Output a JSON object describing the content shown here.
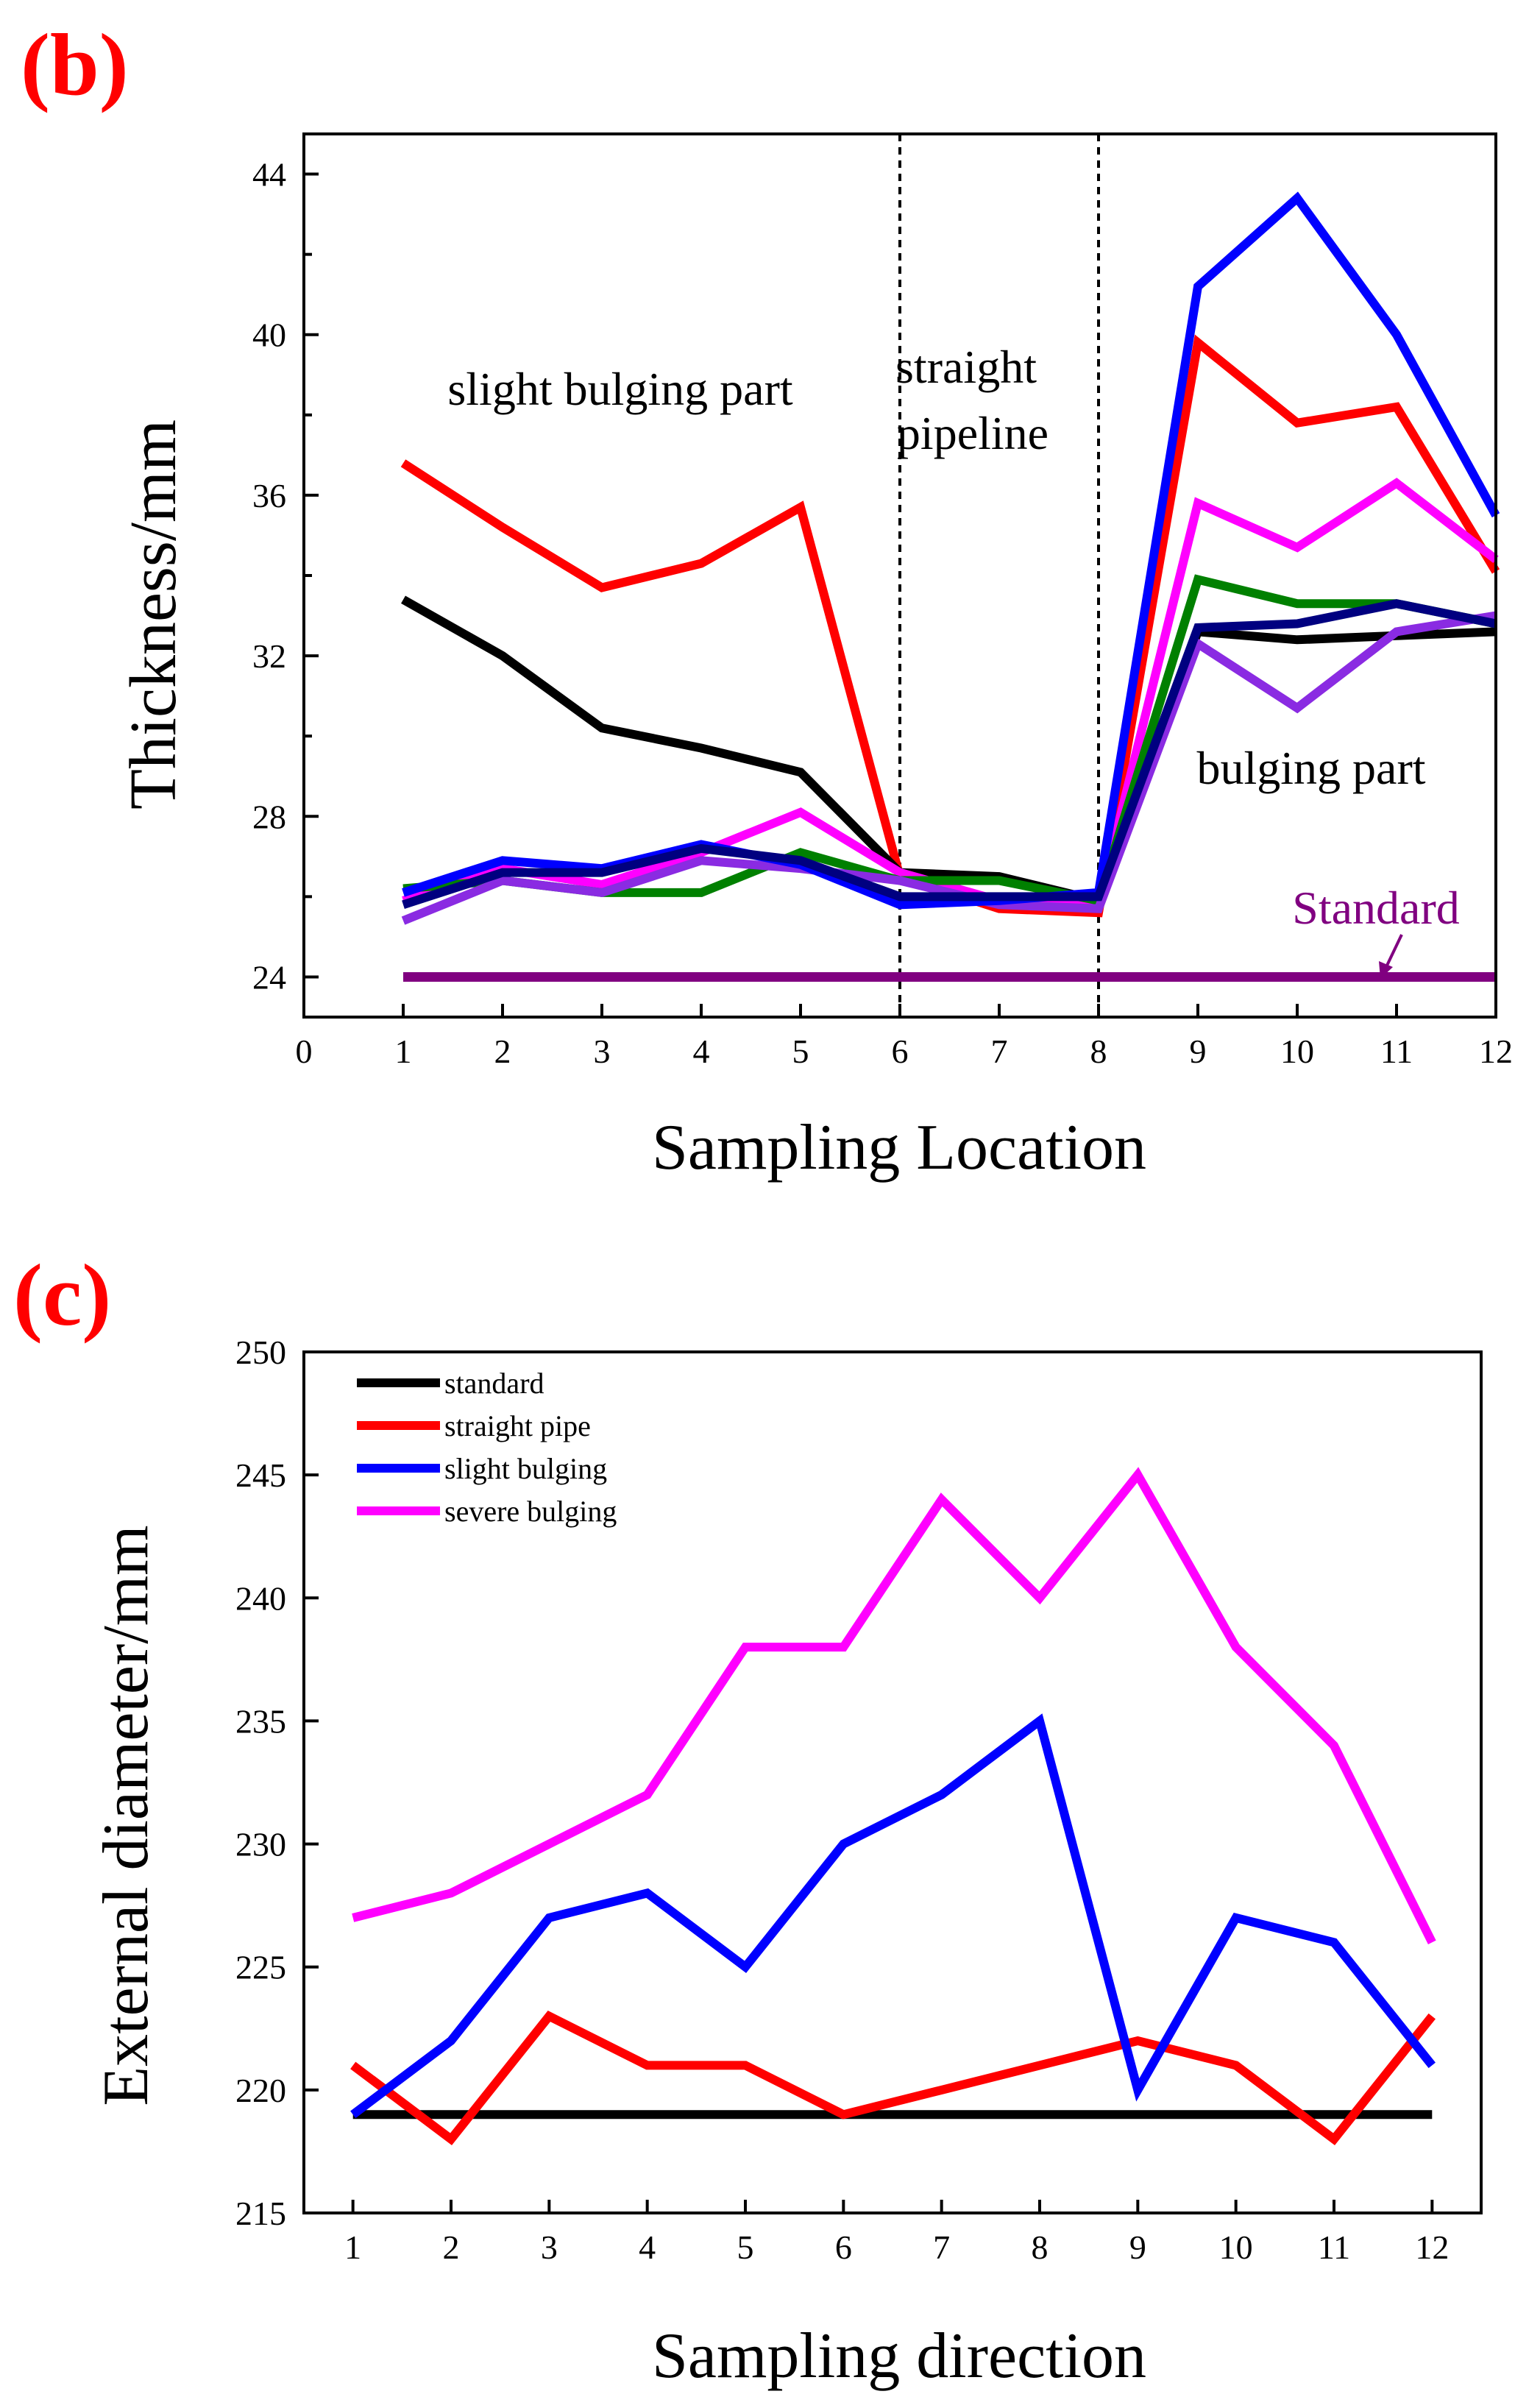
{
  "panels": {
    "b": {
      "label": "(b)"
    },
    "c": {
      "label": "(c)"
    }
  },
  "chart_data": [
    {
      "id": "b",
      "type": "line",
      "xlabel": "Sampling Location",
      "ylabel": "Thickness/mm",
      "xlim": [
        0,
        12
      ],
      "ylim": [
        23,
        45
      ],
      "xticks": [
        0,
        1,
        2,
        3,
        4,
        5,
        6,
        7,
        8,
        9,
        10,
        11,
        12
      ],
      "yticks": [
        24,
        28,
        32,
        36,
        40,
        44
      ],
      "grid": false,
      "legend": "none",
      "x": [
        1,
        2,
        3,
        4,
        5,
        6,
        7,
        8,
        9,
        10,
        11,
        12
      ],
      "series": [
        {
          "color": "#ff0000",
          "values": [
            36.8,
            35.2,
            33.7,
            34.3,
            35.7,
            26.5,
            25.7,
            25.6,
            39.8,
            37.8,
            38.2,
            34.1
          ]
        },
        {
          "color": "#000000",
          "values": [
            33.4,
            32.0,
            30.2,
            29.7,
            29.1,
            26.6,
            26.5,
            25.9,
            32.6,
            32.4,
            32.5,
            32.6
          ]
        },
        {
          "color": "#ff00ff",
          "values": [
            25.9,
            26.7,
            26.3,
            27.1,
            28.1,
            26.6,
            25.9,
            25.8,
            35.8,
            34.7,
            36.3,
            34.4
          ]
        },
        {
          "color": "#008000",
          "values": [
            26.2,
            26.4,
            26.1,
            26.1,
            27.1,
            26.4,
            26.4,
            25.9,
            33.9,
            33.3,
            33.3,
            32.8
          ]
        },
        {
          "color": "#8a2be2",
          "values": [
            25.4,
            26.4,
            26.1,
            26.9,
            26.7,
            26.4,
            25.8,
            25.7,
            32.3,
            30.7,
            32.6,
            33.0
          ]
        },
        {
          "color": "#0000ff",
          "values": [
            26.1,
            26.9,
            26.7,
            27.3,
            26.8,
            25.8,
            25.9,
            26.1,
            41.2,
            43.4,
            40.0,
            35.5
          ]
        },
        {
          "color": "#000080",
          "values": [
            25.8,
            26.6,
            26.6,
            27.2,
            26.9,
            26.0,
            26.0,
            26.0,
            32.7,
            32.8,
            33.3,
            32.8
          ]
        },
        {
          "color": "#800080",
          "name": "Standard",
          "values": [
            24,
            24,
            24,
            24,
            24,
            24,
            24,
            24,
            24,
            24,
            24,
            24
          ]
        }
      ],
      "vlines": [
        6,
        8
      ],
      "annotations": {
        "slight_bulging": "slight bulging part",
        "straight_line1": "straight",
        "straight_line2": "pipeline",
        "bulging": "bulging part",
        "standard": "Standard"
      }
    },
    {
      "id": "c",
      "type": "line",
      "xlabel": "Sampling direction",
      "ylabel": "External diameter/mm",
      "xlim": [
        0.5,
        12.5
      ],
      "ylim": [
        215,
        250
      ],
      "xticks": [
        1,
        2,
        3,
        4,
        5,
        6,
        7,
        8,
        9,
        10,
        11,
        12
      ],
      "yticks": [
        215,
        220,
        225,
        230,
        235,
        240,
        245,
        250
      ],
      "grid": false,
      "legend": "top-left",
      "x": [
        1,
        2,
        3,
        4,
        5,
        6,
        7,
        8,
        9,
        10,
        11,
        12
      ],
      "series": [
        {
          "name": "standard",
          "color": "#000000",
          "values": [
            219,
            219,
            219,
            219,
            219,
            219,
            219,
            219,
            219,
            219,
            219,
            219
          ]
        },
        {
          "name": "straight pipe",
          "color": "#ff0000",
          "values": [
            221,
            218,
            223,
            221,
            221,
            219,
            220,
            221,
            222,
            221,
            218,
            223
          ]
        },
        {
          "name": "slight bulging",
          "color": "#0000ff",
          "values": [
            219,
            222,
            227,
            228,
            225,
            230,
            232,
            235,
            220,
            227,
            226,
            221
          ]
        },
        {
          "name": "severe bulging",
          "color": "#ff00ff",
          "values": [
            227,
            228,
            230,
            232,
            238,
            238,
            244,
            240,
            245,
            238,
            234,
            226
          ]
        }
      ]
    }
  ]
}
